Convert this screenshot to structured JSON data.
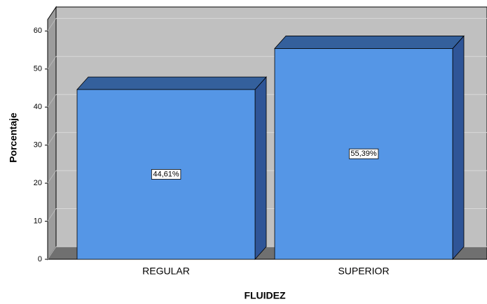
{
  "chart_data": {
    "type": "bar3d",
    "categories": [
      "REGULAR",
      "SUPERIOR"
    ],
    "values": [
      44.61,
      55.39
    ],
    "value_labels": [
      "44,61%",
      "55,39%"
    ],
    "color": "#5596e6",
    "xlabel": "FLUIDEZ",
    "ylabel": "Porcentaje",
    "ylim": [
      0,
      63
    ],
    "yticks": [
      0,
      10,
      20,
      30,
      40,
      50,
      60
    ],
    "grid": true
  }
}
